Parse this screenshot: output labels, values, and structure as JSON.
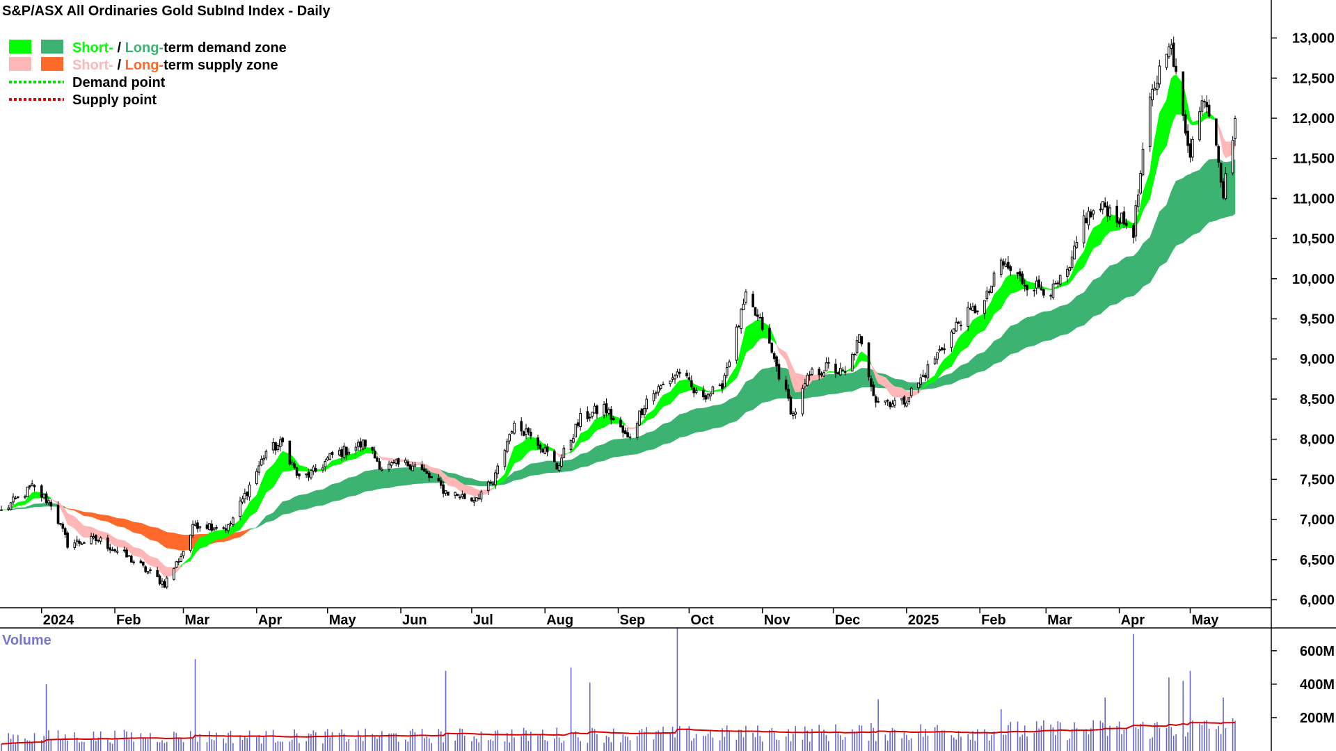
{
  "chart_data": {
    "type": "candlestick",
    "title": "S&P/ASX All Ordinaries Gold SubInd Index - Daily",
    "legend": {
      "demand_zone": {
        "short": "Short-",
        "sep": " / ",
        "long": "Long-",
        "suffix": "term demand zone"
      },
      "supply_zone": {
        "short": "Short-",
        "sep": " / ",
        "long": "Long-",
        "suffix": "term supply zone"
      },
      "demand_point": "Demand point",
      "supply_point": "Supply point"
    },
    "colors": {
      "short_demand": "#00ff00",
      "long_demand": "#3cb371",
      "short_supply": "#ffb6b6",
      "long_supply": "#ff6a2a",
      "demand_point": "#00dd00",
      "supply_point": "#dd0000",
      "candle": "#000000",
      "volume_bar": "#6666cc",
      "volume_ma": "#dd0000",
      "volume_title": "#7777c6"
    },
    "y_axis": {
      "ticks": [
        "13,000",
        "12,500",
        "12,000",
        "11,500",
        "11,000",
        "10,500",
        "10,000",
        "9,500",
        "9,000",
        "8,500",
        "8,000",
        "7,500",
        "7,000",
        "6,500",
        "6,000"
      ],
      "range": [
        5900,
        13300
      ]
    },
    "x_axis": {
      "ticks": [
        "2024",
        "Feb",
        "Mar",
        "Apr",
        "May",
        "Jun",
        "Jul",
        "Aug",
        "Sep",
        "Oct",
        "Nov",
        "Dec",
        "2025",
        "Feb",
        "Mar",
        "Apr",
        "May"
      ]
    },
    "volume": {
      "title": "Volume",
      "ticks": [
        "600M",
        "400M",
        "200M"
      ],
      "range": [
        0,
        720
      ]
    },
    "price_anchors": [
      [
        "2023-12-15",
        7100
      ],
      [
        "2023-12-28",
        7400
      ],
      [
        "2024-01-05",
        7200
      ],
      [
        "2024-01-12",
        6700
      ],
      [
        "2024-01-25",
        6750
      ],
      [
        "2024-02-08",
        6500
      ],
      [
        "2024-02-22",
        6200
      ],
      [
        "2024-02-29",
        6550
      ],
      [
        "2024-03-06",
        6950
      ],
      [
        "2024-03-20",
        6900
      ],
      [
        "2024-03-27",
        7300
      ],
      [
        "2024-04-05",
        7850
      ],
      [
        "2024-04-12",
        7950
      ],
      [
        "2024-04-19",
        7500
      ],
      [
        "2024-04-26",
        7600
      ],
      [
        "2024-05-03",
        7800
      ],
      [
        "2024-05-17",
        7950
      ],
      [
        "2024-05-24",
        7650
      ],
      [
        "2024-06-06",
        7700
      ],
      [
        "2024-06-20",
        7350
      ],
      [
        "2024-07-01",
        7250
      ],
      [
        "2024-07-10",
        7450
      ],
      [
        "2024-07-18",
        8150
      ],
      [
        "2024-07-26",
        8100
      ],
      [
        "2024-08-06",
        7650
      ],
      [
        "2024-08-16",
        8250
      ],
      [
        "2024-08-26",
        8400
      ],
      [
        "2024-09-05",
        8000
      ],
      [
        "2024-09-13",
        8500
      ],
      [
        "2024-09-27",
        8850
      ],
      [
        "2024-10-04",
        8550
      ],
      [
        "2024-10-14",
        8600
      ],
      [
        "2024-10-25",
        9750
      ],
      [
        "2024-11-01",
        9400
      ],
      [
        "2024-11-07",
        8900
      ],
      [
        "2024-11-14",
        8300
      ],
      [
        "2024-11-21",
        8800
      ],
      [
        "2024-11-29",
        8900
      ],
      [
        "2024-12-06",
        8800
      ],
      [
        "2024-12-12",
        9250
      ],
      [
        "2024-12-19",
        8500
      ],
      [
        "2024-12-30",
        8450
      ],
      [
        "2025-01-06",
        8700
      ],
      [
        "2025-01-15",
        9100
      ],
      [
        "2025-01-24",
        9500
      ],
      [
        "2025-02-03",
        9700
      ],
      [
        "2025-02-10",
        10200
      ],
      [
        "2025-02-20",
        9950
      ],
      [
        "2025-03-04",
        9850
      ],
      [
        "2025-03-11",
        10100
      ],
      [
        "2025-03-17",
        10750
      ],
      [
        "2025-03-26",
        10900
      ],
      [
        "2025-04-07",
        10600
      ],
      [
        "2025-04-14",
        12200
      ],
      [
        "2025-04-22",
        13000
      ],
      [
        "2025-04-28",
        12000
      ],
      [
        "2025-05-01",
        11600
      ],
      [
        "2025-05-07",
        12300
      ],
      [
        "2025-05-12",
        11750
      ],
      [
        "2025-05-15",
        11050
      ],
      [
        "2025-05-20",
        12000
      ]
    ],
    "volume_spikes": [
      [
        "2024-01-03",
        400
      ],
      [
        "2024-03-06",
        550
      ],
      [
        "2024-06-20",
        480
      ],
      [
        "2024-08-12",
        500
      ],
      [
        "2024-08-20",
        410
      ],
      [
        "2024-09-26",
        740
      ],
      [
        "2024-12-20",
        310
      ],
      [
        "2025-02-10",
        250
      ],
      [
        "2025-03-26",
        320
      ],
      [
        "2025-04-07",
        700
      ],
      [
        "2025-04-22",
        440
      ],
      [
        "2025-04-28",
        420
      ],
      [
        "2025-05-01",
        480
      ],
      [
        "2025-05-15",
        320
      ]
    ],
    "date_range": [
      "2023-12-15",
      "2025-05-20"
    ]
  }
}
